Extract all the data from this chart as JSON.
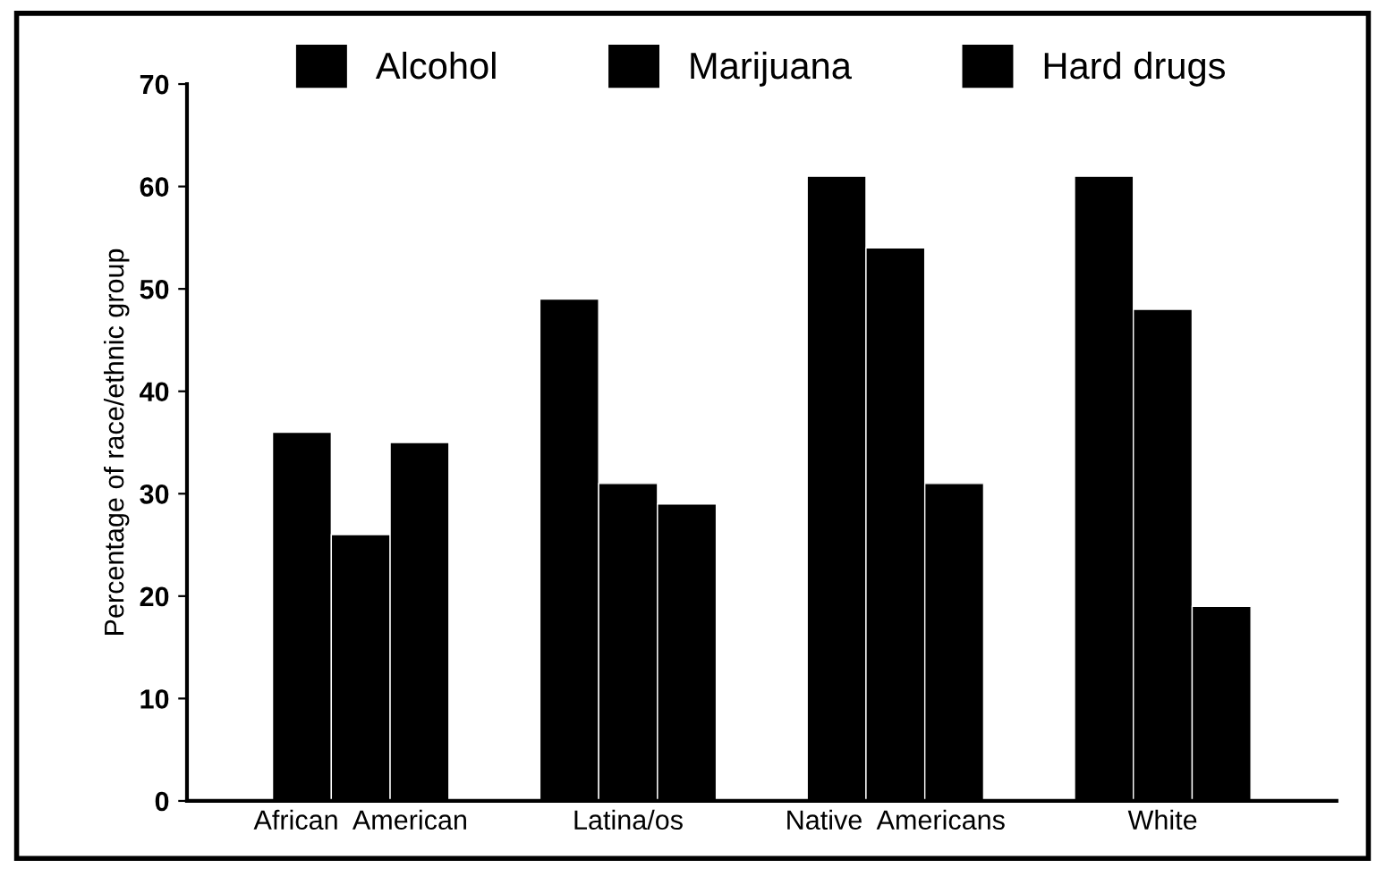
{
  "chart_data": {
    "type": "bar",
    "ylabel": "Percentage of race/ethnic group",
    "categories": [
      "African  American",
      "Latina/os",
      "Native  Americans",
      "White"
    ],
    "series": [
      {
        "name": "Alcohol",
        "color": "#000000",
        "values": [
          36,
          49,
          61,
          61
        ]
      },
      {
        "name": "Marijuana",
        "color": "#000000",
        "values": [
          26,
          31,
          54,
          48
        ]
      },
      {
        "name": "Hard drugs",
        "color": "#000000",
        "values": [
          35,
          29,
          31,
          19
        ]
      }
    ],
    "ylim": [
      0,
      70
    ],
    "yticks": [
      0,
      10,
      20,
      30,
      40,
      50,
      60,
      70
    ],
    "grid": false,
    "legend": "top"
  }
}
